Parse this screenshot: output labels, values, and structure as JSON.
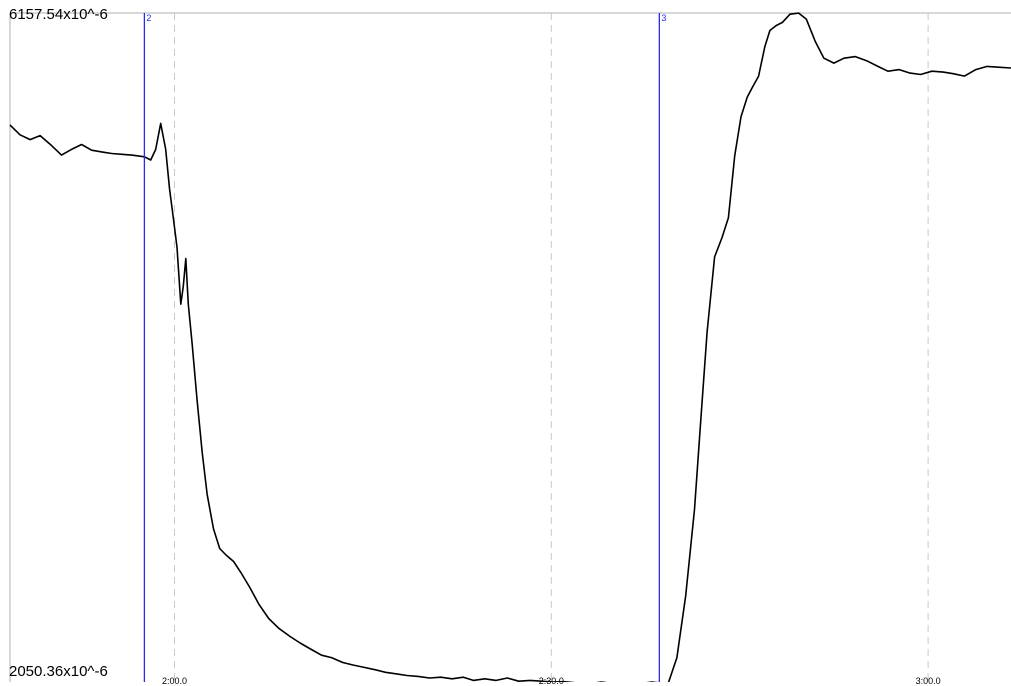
{
  "chart_data": {
    "type": "line",
    "title": "",
    "xlabel": "",
    "ylabel": "",
    "y_max_label": "6157.54x10^-6",
    "y_min_label": "2050.36x10^-6",
    "ylim": [
      2050.36,
      6157.54
    ],
    "y_unit": "x10^-6",
    "x_unit": "seconds",
    "xlim": [
      106.9,
      186.6
    ],
    "grid": "vertical dashed at 2:00.0, 2:30.0, 3:00.0",
    "xticks": [
      {
        "value": 120.0,
        "label": "2:00.0"
      },
      {
        "value": 150.0,
        "label": "2:30.0"
      },
      {
        "value": 180.0,
        "label": "3:00.0"
      }
    ],
    "markers": [
      {
        "label": "2",
        "x": 117.6,
        "color": "#2a2aee"
      },
      {
        "label": "3",
        "x": 158.6,
        "color": "#2a2aee"
      }
    ],
    "series": [
      {
        "color": "#000000",
        "points": [
          [
            106.9,
            5470
          ],
          [
            107.7,
            5410
          ],
          [
            108.5,
            5380
          ],
          [
            109.3,
            5405
          ],
          [
            110.2,
            5345
          ],
          [
            111.0,
            5285
          ],
          [
            111.8,
            5320
          ],
          [
            112.6,
            5350
          ],
          [
            113.4,
            5315
          ],
          [
            114.2,
            5305
          ],
          [
            115.0,
            5295
          ],
          [
            115.8,
            5290
          ],
          [
            116.6,
            5285
          ],
          [
            117.6,
            5275
          ],
          [
            118.1,
            5255
          ],
          [
            118.5,
            5320
          ],
          [
            118.9,
            5480
          ],
          [
            119.3,
            5320
          ],
          [
            119.6,
            5080
          ],
          [
            119.9,
            4900
          ],
          [
            120.2,
            4720
          ],
          [
            120.5,
            4370
          ],
          [
            120.7,
            4480
          ],
          [
            120.9,
            4650
          ],
          [
            121.1,
            4370
          ],
          [
            121.4,
            4130
          ],
          [
            121.8,
            3780
          ],
          [
            122.2,
            3460
          ],
          [
            122.6,
            3200
          ],
          [
            123.1,
            2990
          ],
          [
            123.6,
            2870
          ],
          [
            124.1,
            2830
          ],
          [
            124.7,
            2790
          ],
          [
            125.3,
            2720
          ],
          [
            126.0,
            2630
          ],
          [
            126.7,
            2530
          ],
          [
            127.5,
            2440
          ],
          [
            128.3,
            2380
          ],
          [
            129.2,
            2330
          ],
          [
            130.0,
            2290
          ],
          [
            130.9,
            2250
          ],
          [
            131.7,
            2215
          ],
          [
            132.5,
            2200
          ],
          [
            133.4,
            2170
          ],
          [
            134.2,
            2155
          ],
          [
            135.1,
            2140
          ],
          [
            136.0,
            2125
          ],
          [
            136.8,
            2110
          ],
          [
            137.7,
            2100
          ],
          [
            138.5,
            2090
          ],
          [
            139.4,
            2085
          ],
          [
            140.3,
            2075
          ],
          [
            141.2,
            2080
          ],
          [
            142.1,
            2070
          ],
          [
            143.0,
            2080
          ],
          [
            143.8,
            2060
          ],
          [
            144.7,
            2070
          ],
          [
            145.6,
            2060
          ],
          [
            146.5,
            2075
          ],
          [
            147.4,
            2055
          ],
          [
            148.3,
            2060
          ],
          [
            149.2,
            2055
          ],
          [
            150.1,
            2050
          ],
          [
            151.0,
            2052
          ],
          [
            152.0,
            2045
          ],
          [
            153.0,
            2040
          ],
          [
            154.0,
            2050
          ],
          [
            155.0,
            2040
          ],
          [
            156.0,
            2045
          ],
          [
            157.0,
            2040
          ],
          [
            158.0,
            2050
          ],
          [
            158.6,
            2045
          ],
          [
            159.3,
            2040
          ],
          [
            160.0,
            2200
          ],
          [
            160.7,
            2580
          ],
          [
            161.4,
            3110
          ],
          [
            161.9,
            3660
          ],
          [
            162.4,
            4200
          ],
          [
            163.0,
            4660
          ],
          [
            163.6,
            4780
          ],
          [
            164.1,
            4900
          ],
          [
            164.6,
            5280
          ],
          [
            165.1,
            5520
          ],
          [
            165.6,
            5640
          ],
          [
            166.0,
            5700
          ],
          [
            166.5,
            5770
          ],
          [
            167.0,
            5950
          ],
          [
            167.4,
            6050
          ],
          [
            167.9,
            6080
          ],
          [
            168.4,
            6100
          ],
          [
            169.0,
            6150
          ],
          [
            169.7,
            6157
          ],
          [
            170.3,
            6120
          ],
          [
            171.0,
            5985
          ],
          [
            171.7,
            5880
          ],
          [
            172.5,
            5850
          ],
          [
            173.3,
            5880
          ],
          [
            174.2,
            5890
          ],
          [
            175.1,
            5865
          ],
          [
            176.0,
            5830
          ],
          [
            176.8,
            5800
          ],
          [
            177.7,
            5810
          ],
          [
            178.5,
            5790
          ],
          [
            179.4,
            5780
          ],
          [
            180.3,
            5800
          ],
          [
            181.2,
            5795
          ],
          [
            182.0,
            5785
          ],
          [
            182.9,
            5770
          ],
          [
            183.8,
            5810
          ],
          [
            184.7,
            5830
          ],
          [
            185.6,
            5825
          ],
          [
            186.6,
            5820
          ]
        ]
      }
    ]
  }
}
